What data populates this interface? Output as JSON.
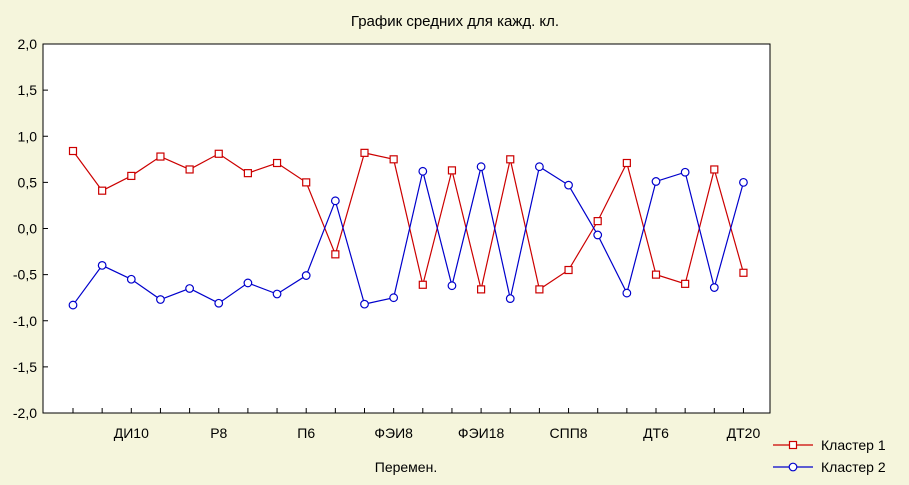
{
  "chart_data": {
    "type": "line",
    "title": "График средних для кажд. кл.",
    "xlabel": "Перемен.",
    "ylabel": "",
    "ylim": [
      -2.0,
      2.0
    ],
    "yticks": [
      "2,0",
      "1,5",
      "1,0",
      "0,5",
      "0,0",
      "-0,5",
      "-1,0",
      "-1,5",
      "-2,0"
    ],
    "ytick_values": [
      2.0,
      1.5,
      1.0,
      0.5,
      0.0,
      -0.5,
      -1.0,
      -1.5,
      -2.0
    ],
    "xtick_labels": [
      {
        "label": "ДИ10",
        "index": 2
      },
      {
        "label": "Р8",
        "index": 5
      },
      {
        "label": "П6",
        "index": 8
      },
      {
        "label": "ФЭИ8",
        "index": 11
      },
      {
        "label": "ФЭИ18",
        "index": 14
      },
      {
        "label": "СПП8",
        "index": 17
      },
      {
        "label": "ДТ6",
        "index": 20
      },
      {
        "label": "ДТ20",
        "index": 23
      }
    ],
    "point_count": 24,
    "grid": false,
    "legend_position": "bottom-right",
    "series": [
      {
        "name": "Кластер 1",
        "color": "#cc0000",
        "marker": "square",
        "values": [
          0.84,
          0.41,
          0.57,
          0.78,
          0.64,
          0.81,
          0.6,
          0.71,
          0.5,
          -0.28,
          0.82,
          0.75,
          -0.61,
          0.63,
          -0.66,
          0.75,
          -0.66,
          -0.45,
          0.08,
          0.71,
          -0.5,
          -0.6,
          0.64,
          -0.48
        ]
      },
      {
        "name": "Кластер 2",
        "color": "#0000cc",
        "marker": "circle",
        "values": [
          -0.83,
          -0.4,
          -0.55,
          -0.77,
          -0.65,
          -0.81,
          -0.59,
          -0.71,
          -0.51,
          0.3,
          -0.82,
          -0.75,
          0.62,
          -0.62,
          0.67,
          -0.76,
          0.67,
          0.47,
          -0.07,
          -0.7,
          0.51,
          0.61,
          -0.64,
          0.5
        ]
      }
    ]
  }
}
